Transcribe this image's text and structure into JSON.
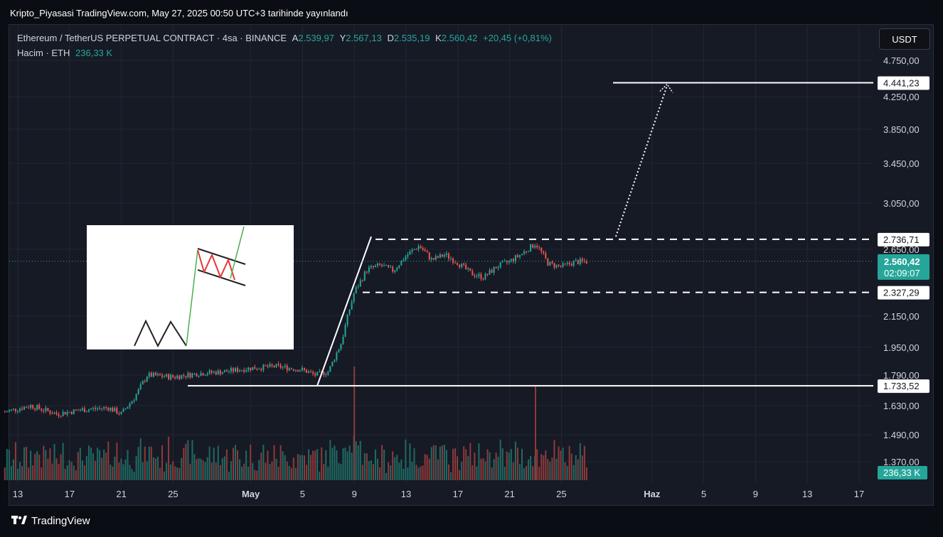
{
  "header": {
    "title": "Kripto_Piyasasi TradingView.com, May 27, 2025 00:50 UTC+3 tarihinde yayınlandı"
  },
  "legend": {
    "symbol": "Ethereum / TetherUS PERPETUAL CONTRACT · 4sa · BINANCE",
    "o_label": "A",
    "o": "2.539,97",
    "h_label": "Y",
    "h": "2.567,13",
    "l_label": "D",
    "l": "2.535,19",
    "c_label": "K",
    "c": "2.560,42",
    "change": "+20,45 (+0,81%)",
    "vol_label": "Hacim · ETH",
    "vol": "236,33 K"
  },
  "currency_button": "USDT",
  "footer": {
    "brand": "TradingView",
    "logo": "tradingview-logo-icon"
  },
  "colors": {
    "up": "#26a69a",
    "down": "#ef5350",
    "bg": "#161a25",
    "grid": "#232733",
    "axis_text": "#d1d4dc"
  },
  "chart_data": {
    "type": "candlestick",
    "symbol": "ETHUSDT.P",
    "timeframe": "4sa",
    "y_ticks": [
      "4.750,00",
      "4.250,00",
      "3.850,00",
      "3.450,00",
      "3.050,00",
      "2.650,00",
      "2.150,00",
      "1.950,00",
      "1.790,00",
      "1.630,00",
      "1.490,00",
      "1.370,00"
    ],
    "y_tick_values": [
      4750,
      4250,
      3850,
      3450,
      3050,
      2650,
      2150,
      1950,
      1790,
      1630,
      1490,
      1370
    ],
    "x_ticks": [
      "13",
      "17",
      "21",
      "25",
      "May",
      "5",
      "9",
      "13",
      "17",
      "21",
      "25",
      "Haz",
      "5",
      "9",
      "13",
      "17"
    ],
    "x_tick_dates": [
      "2025-04-13",
      "2025-04-17",
      "2025-04-21",
      "2025-04-25",
      "2025-05-01",
      "2025-05-05",
      "2025-05-09",
      "2025-05-13",
      "2025-05-17",
      "2025-05-21",
      "2025-05-25",
      "2025-06-01",
      "2025-06-05",
      "2025-06-09",
      "2025-06-13",
      "2025-06-17"
    ],
    "price_path": [
      [
        "2025-04-12",
        1600
      ],
      [
        "2025-04-14",
        1630
      ],
      [
        "2025-04-16",
        1590
      ],
      [
        "2025-04-18",
        1610
      ],
      [
        "2025-04-20",
        1620
      ],
      [
        "2025-04-21",
        1590
      ],
      [
        "2025-04-22",
        1670
      ],
      [
        "2025-04-23",
        1790
      ],
      [
        "2025-04-25",
        1780
      ],
      [
        "2025-04-27",
        1800
      ],
      [
        "2025-04-29",
        1810
      ],
      [
        "2025-05-01",
        1830
      ],
      [
        "2025-05-03",
        1840
      ],
      [
        "2025-05-05",
        1820
      ],
      [
        "2025-05-06",
        1790
      ],
      [
        "2025-05-07",
        1810
      ],
      [
        "2025-05-08",
        1980
      ],
      [
        "2025-05-09",
        2330
      ],
      [
        "2025-05-10",
        2500
      ],
      [
        "2025-05-11",
        2530
      ],
      [
        "2025-05-12",
        2490
      ],
      [
        "2025-05-13",
        2600
      ],
      [
        "2025-05-14",
        2680
      ],
      [
        "2025-05-15",
        2570
      ],
      [
        "2025-05-16",
        2610
      ],
      [
        "2025-05-17",
        2550
      ],
      [
        "2025-05-18",
        2470
      ],
      [
        "2025-05-19",
        2440
      ],
      [
        "2025-05-20",
        2520
      ],
      [
        "2025-05-21",
        2560
      ],
      [
        "2025-05-22",
        2620
      ],
      [
        "2025-05-23",
        2700
      ],
      [
        "2025-05-24",
        2540
      ],
      [
        "2025-05-25",
        2520
      ],
      [
        "2025-05-26",
        2555
      ],
      [
        "2025-05-27",
        2560
      ]
    ],
    "volume_spikes": [
      [
        "2025-05-09",
        1150000
      ],
      [
        "2025-05-23",
        950000
      ]
    ],
    "levels": [
      {
        "label": "4.441,23",
        "value": 4441.23
      },
      {
        "label": "2.736,71",
        "value": 2736.71
      },
      {
        "label": "2.327,29",
        "value": 2327.29
      },
      {
        "label": "1.733,52",
        "value": 1733.52
      }
    ],
    "last_price": {
      "label": "2.560,42",
      "countdown": "02:09:07"
    },
    "last_volume": "236,33 K",
    "projection_target": 4441.23,
    "inset": "bull-flag-pattern-diagram"
  }
}
